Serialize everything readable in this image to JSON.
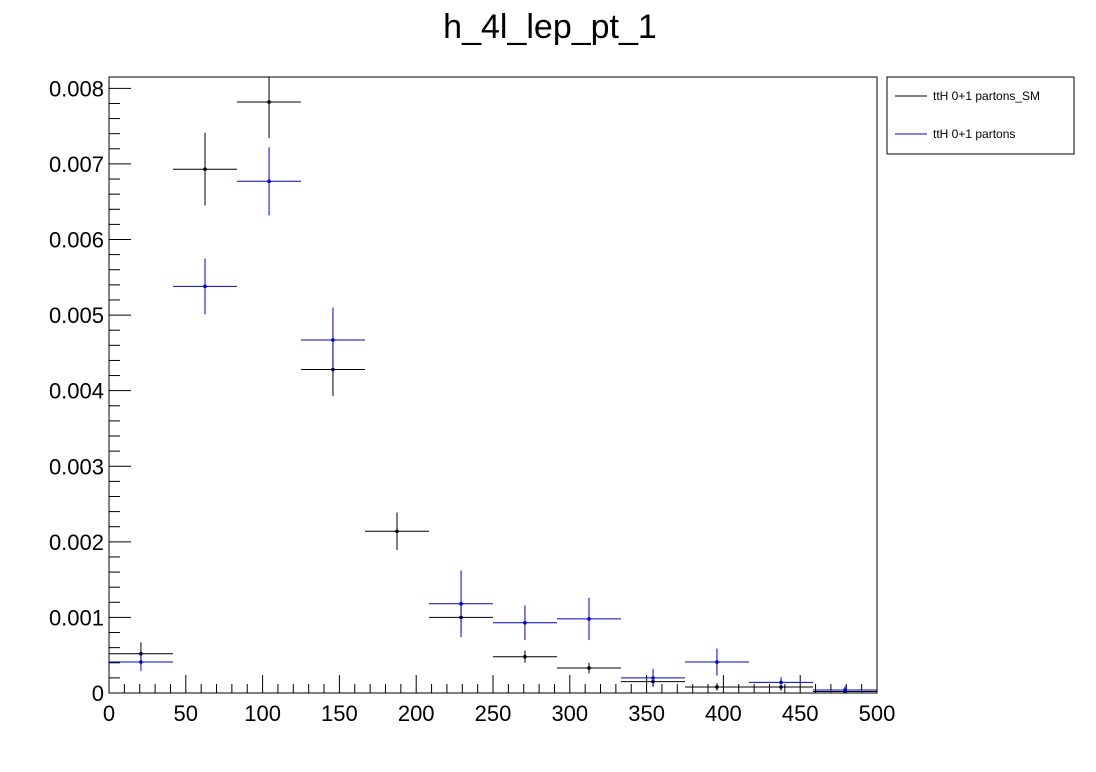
{
  "chart_data": {
    "type": "scatter",
    "title": "h_4l_lep_pt_1",
    "xlabel": "",
    "ylabel": "",
    "xlim": [
      0,
      500
    ],
    "ylim": [
      0,
      0.00815
    ],
    "x_ticks": [
      "0",
      "50",
      "100",
      "150",
      "200",
      "250",
      "300",
      "350",
      "400",
      "450",
      "500"
    ],
    "y_ticks": [
      "0",
      "0.001",
      "0.002",
      "0.003",
      "0.004",
      "0.005",
      "0.006",
      "0.007",
      "0.008"
    ],
    "bin_edges": [
      0,
      41.67,
      83.33,
      125,
      166.67,
      208.33,
      250,
      291.67,
      333.33,
      375,
      416.67,
      458.33,
      500
    ],
    "grid": false,
    "legend_position": "top-right",
    "series": [
      {
        "name": "ttH 0+1 partons_SM",
        "color": "#000000",
        "x": [
          20.8,
          62.5,
          104.2,
          145.8,
          187.5,
          229.2,
          270.8,
          312.5,
          354.2,
          395.8,
          437.5,
          479.2
        ],
        "values": [
          0.00052,
          0.00693,
          0.00782,
          0.00428,
          0.00214,
          0.001,
          0.00048,
          0.00033,
          0.00015,
          8e-05,
          8e-05,
          2e-05
        ],
        "errors": [
          0.00015,
          0.00048,
          0.00048,
          0.00035,
          0.00025,
          0.00016,
          8e-05,
          7e-05,
          7e-05,
          5e-05,
          5e-05,
          2e-05
        ]
      },
      {
        "name": "ttH 0+1 partons",
        "color": "#0000cc",
        "x": [
          20.8,
          62.5,
          104.2,
          145.8,
          187.5,
          229.2,
          270.8,
          312.5,
          354.2,
          395.8,
          437.5,
          479.2
        ],
        "values": [
          0.00041,
          0.00538,
          0.00677,
          0.00467,
          null,
          0.00118,
          0.00093,
          0.00098,
          0.0002,
          0.00041,
          0.00014,
          4e-05
        ],
        "errors": [
          0.00012,
          0.00037,
          0.00045,
          0.00043,
          null,
          0.00044,
          0.00023,
          0.00028,
          0.00012,
          0.00018,
          7e-05,
          5e-05
        ]
      }
    ]
  }
}
